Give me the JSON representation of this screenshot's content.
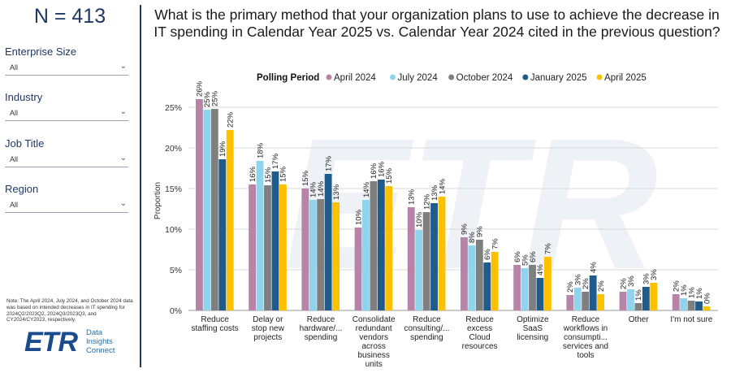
{
  "sidebar": {
    "n_label": "N = 413",
    "filters": [
      {
        "label": "Enterprise Size",
        "value": "All"
      },
      {
        "label": "Industry",
        "value": "All"
      },
      {
        "label": "Job Title",
        "value": "All"
      },
      {
        "label": "Region",
        "value": "All"
      }
    ],
    "note": "Note: The April 2024, July 2024, and October 2024 data was based on intended decreases in IT spending for 2024Q2/2023Q2, 2024Q3/2023Q3, and CY2024/CY2023, respectively.",
    "logo": {
      "mark": "ETR",
      "line1": "Data",
      "line2": "Insights",
      "line3": "Connect"
    }
  },
  "chart_data": {
    "type": "bar",
    "title": "What is the primary method that your organization plans to use to achieve the decrease in IT spending in Calendar Year 2025 vs. Calendar Year 2024 cited in the previous question?",
    "legend_title": "Polling Period",
    "ylabel": "Proportion",
    "ylim": [
      0,
      0.27
    ],
    "yticks": [
      0,
      0.05,
      0.1,
      0.15,
      0.2,
      0.25
    ],
    "ytick_labels": [
      "0%",
      "5%",
      "10%",
      "15%",
      "20%",
      "25%"
    ],
    "grid": true,
    "legend_position": "top",
    "categories": [
      [
        "Reduce",
        "staffing costs"
      ],
      [
        "Delay or",
        "stop new",
        "projects"
      ],
      [
        "Reduce",
        "hardware/...",
        "spending"
      ],
      [
        "Consolidate",
        "redundant",
        "vendors",
        "across",
        "business",
        "units"
      ],
      [
        "Reduce",
        "consulting/...",
        "spending"
      ],
      [
        "Reduce",
        "excess",
        "Cloud",
        "resources"
      ],
      [
        "Optimize",
        "SaaS",
        "licensing"
      ],
      [
        "Reduce",
        "workflows in",
        "consumpti...",
        "services and",
        "tools"
      ],
      [
        "Other"
      ],
      [
        "I'm not sure"
      ]
    ],
    "series": [
      {
        "name": "April 2024",
        "color": "#b784a7",
        "values": [
          0.26,
          0.155,
          0.15,
          0.102,
          0.127,
          0.09,
          0.056,
          0.019,
          0.023,
          0.02
        ],
        "labels": [
          "26%",
          "16%",
          "15%",
          "10%",
          "13%",
          "9%",
          "6%",
          "2%",
          "2%",
          "2%"
        ]
      },
      {
        "name": "July 2024",
        "color": "#8fd3ec",
        "values": [
          0.247,
          0.184,
          0.136,
          0.136,
          0.099,
          0.08,
          0.052,
          0.028,
          0.026,
          0.015
        ],
        "labels": [
          "25%",
          "18%",
          "14%",
          "14%",
          "10%",
          "8%",
          "5%",
          "3%",
          "3%",
          "1%"
        ]
      },
      {
        "name": "October 2024",
        "color": "#7f7f7f",
        "values": [
          0.248,
          0.154,
          0.137,
          0.159,
          0.121,
          0.087,
          0.056,
          0.023,
          0.009,
          0.012
        ],
        "labels": [
          "25%",
          "15%",
          "14%",
          "16%",
          "12%",
          "9%",
          "6%",
          "2%",
          "1%",
          "1%"
        ]
      },
      {
        "name": "January 2025",
        "color": "#1f5c8b",
        "values": [
          0.186,
          0.171,
          0.168,
          0.161,
          0.132,
          0.059,
          0.04,
          0.043,
          0.029,
          0.011
        ],
        "labels": [
          "19%",
          "17%",
          "17%",
          "16%",
          "13%",
          "6%",
          "4%",
          "4%",
          "3%",
          "1%"
        ]
      },
      {
        "name": "April 2025",
        "color": "#ffc000",
        "values": [
          0.222,
          0.155,
          0.133,
          0.153,
          0.14,
          0.072,
          0.066,
          0.02,
          0.034,
          0.005
        ],
        "labels": [
          "22%",
          "15%",
          "13%",
          "15%",
          "14%",
          "7%",
          "7%",
          "2%",
          "3%",
          "0%"
        ]
      }
    ]
  }
}
